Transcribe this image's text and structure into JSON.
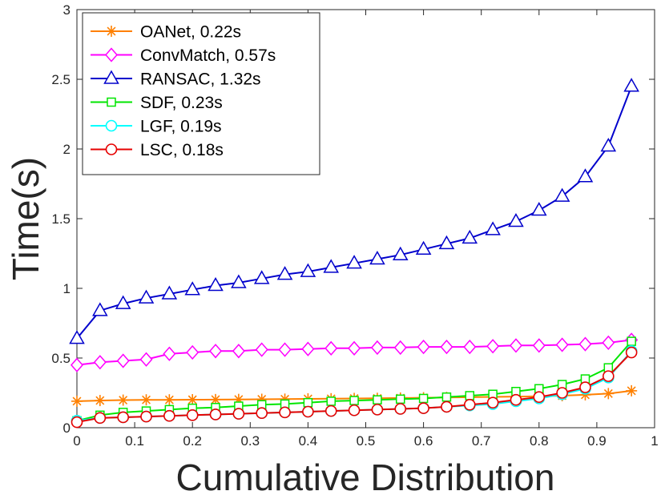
{
  "chart_data": {
    "type": "line",
    "title": "",
    "xlabel": "Cumulative Distribution",
    "ylabel": "Time(s)",
    "xlim": [
      0,
      1
    ],
    "ylim": [
      0,
      3
    ],
    "xticks": [
      0,
      0.1,
      0.2,
      0.3,
      0.4,
      0.5,
      0.6,
      0.7,
      0.8,
      0.9,
      1
    ],
    "xtick_labels": [
      "0",
      "0.1",
      "0.2",
      "0.3",
      "0.4",
      "0.5",
      "0.6",
      "0.7",
      "0.8",
      "0.9",
      "1"
    ],
    "yticks": [
      0,
      0.5,
      1,
      1.5,
      2,
      2.5,
      3
    ],
    "ytick_labels": [
      "0",
      "0.5",
      "1",
      "1.5",
      "2",
      "2.5",
      "3"
    ],
    "grid": false,
    "legend_position": "top-left",
    "x": [
      0,
      0.04,
      0.08,
      0.12,
      0.16,
      0.2,
      0.24,
      0.28,
      0.32,
      0.36,
      0.4,
      0.44,
      0.48,
      0.52,
      0.56,
      0.6,
      0.64,
      0.68,
      0.72,
      0.76,
      0.8,
      0.84,
      0.88,
      0.92,
      0.96
    ],
    "series": [
      {
        "name": "OANet, 0.22s",
        "color": "#ff8000",
        "marker": "asterisk",
        "values": [
          0.19,
          0.195,
          0.198,
          0.2,
          0.2,
          0.201,
          0.202,
          0.203,
          0.204,
          0.205,
          0.207,
          0.208,
          0.21,
          0.211,
          0.213,
          0.215,
          0.217,
          0.219,
          0.221,
          0.223,
          0.226,
          0.23,
          0.236,
          0.245,
          0.265
        ]
      },
      {
        "name": "ConvMatch, 0.57s",
        "color": "#ff00ff",
        "marker": "diamond",
        "values": [
          0.45,
          0.47,
          0.48,
          0.49,
          0.53,
          0.54,
          0.55,
          0.55,
          0.56,
          0.56,
          0.565,
          0.57,
          0.57,
          0.575,
          0.575,
          0.58,
          0.58,
          0.58,
          0.585,
          0.59,
          0.59,
          0.595,
          0.6,
          0.61,
          0.63
        ]
      },
      {
        "name": "RANSAC,  1.32s",
        "color": "#0000cc",
        "marker": "triangle",
        "values": [
          0.64,
          0.84,
          0.89,
          0.93,
          0.96,
          0.99,
          1.02,
          1.04,
          1.07,
          1.1,
          1.12,
          1.15,
          1.18,
          1.21,
          1.24,
          1.28,
          1.32,
          1.36,
          1.42,
          1.48,
          1.56,
          1.66,
          1.8,
          2.02,
          2.45
        ]
      },
      {
        "name": "SDF,  0.23s",
        "color": "#00e600",
        "marker": "square",
        "values": [
          0.05,
          0.09,
          0.11,
          0.12,
          0.13,
          0.14,
          0.145,
          0.155,
          0.165,
          0.17,
          0.18,
          0.19,
          0.195,
          0.2,
          0.205,
          0.21,
          0.22,
          0.23,
          0.24,
          0.26,
          0.28,
          0.31,
          0.35,
          0.43,
          0.62
        ]
      },
      {
        "name": "LGF, 0.19s",
        "color": "#00ffff",
        "marker": "circle",
        "values": [
          0.05,
          0.07,
          0.075,
          0.08,
          0.085,
          0.09,
          0.095,
          0.1,
          0.105,
          0.11,
          0.115,
          0.12,
          0.125,
          0.13,
          0.135,
          0.14,
          0.15,
          0.16,
          0.17,
          0.19,
          0.21,
          0.24,
          0.28,
          0.36,
          0.55
        ]
      },
      {
        "name": "LSC,  0.18s",
        "color": "#e60000",
        "marker": "circle",
        "values": [
          0.04,
          0.07,
          0.075,
          0.08,
          0.085,
          0.09,
          0.095,
          0.1,
          0.105,
          0.11,
          0.115,
          0.12,
          0.125,
          0.13,
          0.135,
          0.14,
          0.15,
          0.165,
          0.18,
          0.2,
          0.22,
          0.25,
          0.29,
          0.37,
          0.54
        ]
      }
    ]
  }
}
